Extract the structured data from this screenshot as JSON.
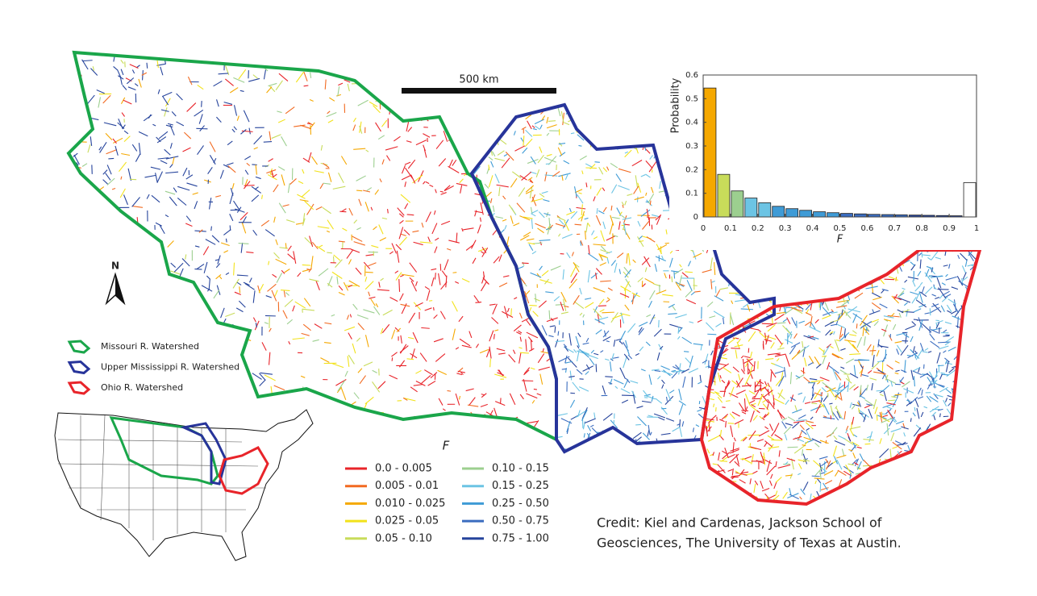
{
  "map": {
    "scale_bar": "500 km",
    "north": "N",
    "watershed_legend": [
      {
        "label": "Missouri R. Watershed",
        "color": "#1aa64a"
      },
      {
        "label": "Upper Mississippi R. Watershed",
        "color": "#27349a"
      },
      {
        "label": "Ohio R. Watershed",
        "color": "#e8242a"
      }
    ],
    "f_legend": {
      "title": "F",
      "items": [
        {
          "label": "0.0 - 0.005",
          "color": "#e8242a"
        },
        {
          "label": "0.005 - 0.01",
          "color": "#f26a21"
        },
        {
          "label": "0.010 - 0.025",
          "color": "#f5a800"
        },
        {
          "label": "0.025 - 0.05",
          "color": "#f2e21a"
        },
        {
          "label": "0.05 - 0.10",
          "color": "#c8dc5a"
        },
        {
          "label": "0.10 - 0.15",
          "color": "#9ccf8f"
        },
        {
          "label": "0.15 - 0.25",
          "color": "#6cc4e4"
        },
        {
          "label": "0.25 - 0.50",
          "color": "#3f9bd6"
        },
        {
          "label": "0.50 - 0.75",
          "color": "#3a6cbf"
        },
        {
          "label": "0.75 - 1.00",
          "color": "#26449c"
        }
      ]
    },
    "credit": [
      "Credit: Kiel and Cardenas, Jackson School of",
      "Geosciences, The University of Texas at Austin."
    ]
  },
  "chart_data": {
    "type": "histogram",
    "x_label": "F",
    "y_label": "Probability",
    "bins": [
      0,
      0.05,
      0.1,
      0.15,
      0.2,
      0.25,
      0.3,
      0.35,
      0.4,
      0.45,
      0.5,
      0.55,
      0.6,
      0.65,
      0.7,
      0.75,
      0.8,
      0.85,
      0.9,
      0.95,
      1
    ],
    "values": [
      0.545,
      0.18,
      0.11,
      0.08,
      0.06,
      0.045,
      0.035,
      0.028,
      0.022,
      0.018,
      0.015,
      0.013,
      0.011,
      0.01,
      0.009,
      0.008,
      0.007,
      0.006,
      0.005,
      0.145
    ],
    "colors": [
      "#f5a800",
      "#c8dc5a",
      "#9ccf8f",
      "#6cc4e4",
      "#6cc4e4",
      "#3f9bd6",
      "#3f9bd6",
      "#3f9bd6",
      "#3f9bd6",
      "#3f9bd6",
      "#3a6cbf",
      "#3a6cbf",
      "#3a6cbf",
      "#3a6cbf",
      "#3a6cbf",
      "#26449c",
      "#26449c",
      "#26449c",
      "#26449c",
      "#ffffff"
    ],
    "xlim": [
      0,
      1
    ],
    "ylim": [
      0,
      0.6
    ],
    "xticks": [
      0,
      0.1,
      0.2,
      0.3,
      0.4,
      0.5,
      0.6,
      0.7,
      0.8,
      0.9,
      1
    ],
    "yticks": [
      0,
      0.1,
      0.2,
      0.3,
      0.4,
      0.5,
      0.6
    ]
  }
}
